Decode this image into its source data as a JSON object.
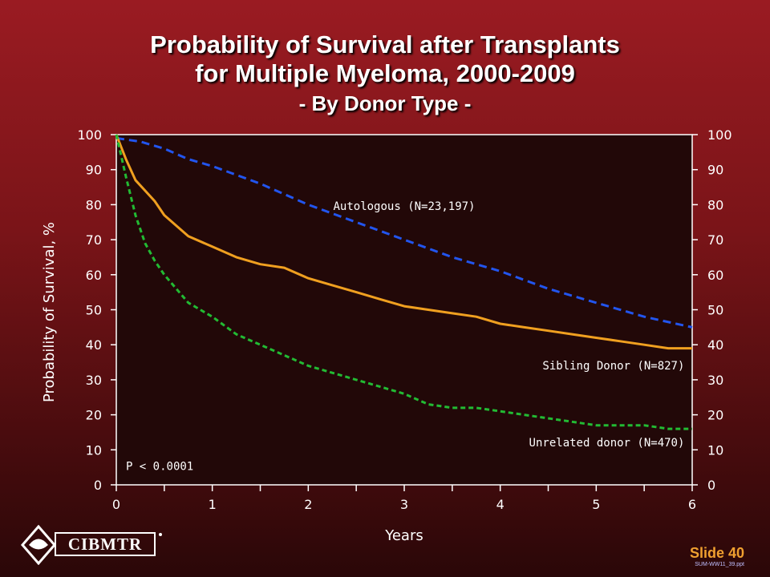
{
  "title": {
    "line1": "Probability of Survival after Transplants",
    "line2": "for Multiple Myeloma, 2000-2009",
    "line3": "- By Donor Type -"
  },
  "colors": {
    "autologous": "#2255ee",
    "sibling": "#f0a020",
    "unrelated": "#22bb33",
    "plot_bg": "#220808"
  },
  "chart_data": {
    "type": "line",
    "xlabel": "Years",
    "ylabel": "Probability of Survival, %",
    "xlim": [
      0,
      6
    ],
    "ylim": [
      0,
      100
    ],
    "xticks": [
      "0",
      "1",
      "2",
      "3",
      "4",
      "5",
      "6"
    ],
    "yticks": [
      "0",
      "10",
      "20",
      "30",
      "40",
      "50",
      "60",
      "70",
      "80",
      "90",
      "100"
    ],
    "annotation": "P < 0.0001",
    "series": [
      {
        "name": "Autologous (N=23,197)",
        "style": "dashed",
        "x": [
          0,
          0.25,
          0.5,
          0.75,
          1,
          1.5,
          2,
          2.5,
          3,
          3.5,
          4,
          4.5,
          5,
          5.5,
          6
        ],
        "y": [
          99,
          98,
          96,
          93,
          91,
          86,
          80,
          75,
          70,
          65,
          61,
          56,
          52,
          48,
          45
        ]
      },
      {
        "name": "Sibling Donor (N=827)",
        "style": "solid",
        "x": [
          0,
          0.1,
          0.2,
          0.3,
          0.4,
          0.5,
          0.75,
          1,
          1.25,
          1.5,
          1.75,
          2,
          2.25,
          2.5,
          2.75,
          3,
          3.25,
          3.5,
          3.75,
          4,
          4.25,
          4.5,
          4.75,
          5,
          5.25,
          5.5,
          5.75,
          6
        ],
        "y": [
          100,
          93,
          87,
          84,
          81,
          77,
          71,
          68,
          65,
          63,
          62,
          59,
          57,
          55,
          53,
          51,
          50,
          49,
          48,
          46,
          45,
          44,
          43,
          42,
          41,
          40,
          39,
          39
        ]
      },
      {
        "name": "Unrelated donor (N=470)",
        "style": "dashed",
        "x": [
          0,
          0.1,
          0.2,
          0.3,
          0.4,
          0.5,
          0.75,
          1,
          1.25,
          1.5,
          1.75,
          2,
          2.25,
          2.5,
          2.75,
          3,
          3.25,
          3.5,
          3.75,
          4,
          4.25,
          4.5,
          4.75,
          5,
          5.25,
          5.5,
          5.75,
          6
        ],
        "y": [
          100,
          88,
          77,
          69,
          64,
          60,
          52,
          48,
          43,
          40,
          37,
          34,
          32,
          30,
          28,
          26,
          23,
          22,
          22,
          21,
          20,
          19,
          18,
          17,
          17,
          17,
          16,
          16
        ]
      }
    ]
  },
  "footer": {
    "logo_text": "CIBMTR",
    "slide_number": "Slide 40",
    "file_name": "SUM-WW11_39.ppt"
  }
}
